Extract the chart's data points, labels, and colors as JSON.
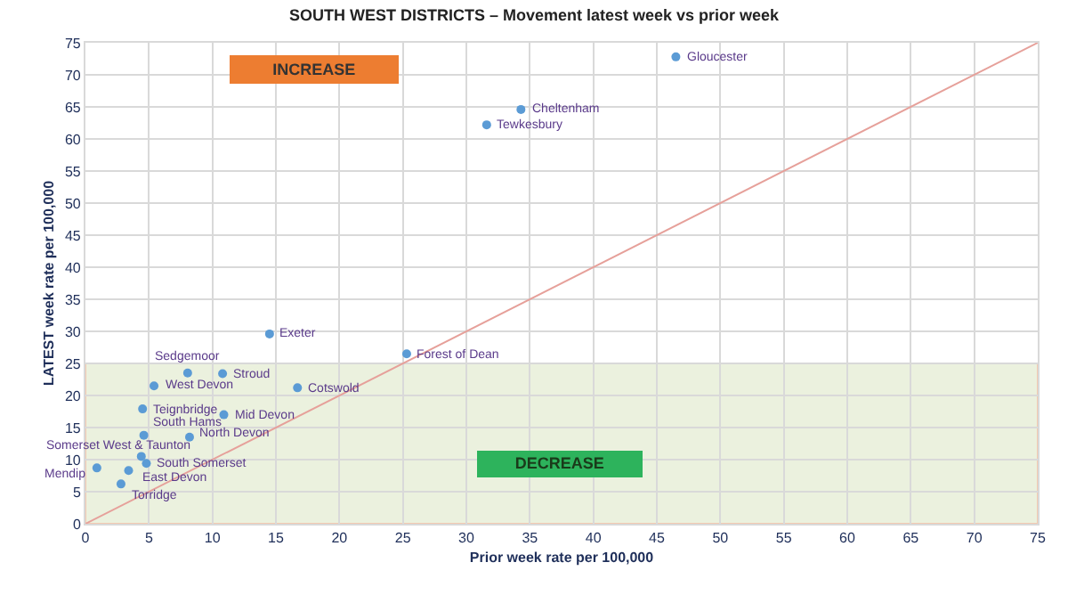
{
  "chart_data": {
    "type": "scatter",
    "title": "SOUTH WEST DISTRICTS – Movement latest week vs prior week",
    "xlabel": "Prior week rate per 100,000",
    "ylabel": "LATEST week rate per 100,000",
    "xlim": [
      0,
      75
    ],
    "ylim": [
      0,
      75
    ],
    "xticks": [
      0,
      5,
      10,
      15,
      20,
      25,
      30,
      35,
      40,
      45,
      50,
      55,
      60,
      65,
      70,
      75
    ],
    "yticks": [
      0,
      5,
      10,
      15,
      20,
      25,
      30,
      35,
      40,
      45,
      50,
      55,
      60,
      65,
      70,
      75
    ],
    "grid": true,
    "marker": "circle",
    "bands": [
      {
        "axis": "y",
        "from": 0,
        "to": 25,
        "color": "#ebf1de"
      }
    ],
    "annotations": [
      "INCREASE",
      "DECREASE"
    ],
    "series": [
      {
        "color": "#5b9bd5",
        "x": [
          46.5,
          34.3,
          31.6,
          14.5,
          25.3,
          8.05,
          10.8,
          5.4,
          16.7,
          4.5,
          10.9,
          4.6,
          8.2,
          4.4,
          4.8,
          0.9,
          3.4,
          2.8
        ],
        "values": [
          72.8,
          64.6,
          62.2,
          29.6,
          26.5,
          23.5,
          23.4,
          21.5,
          21.2,
          17.9,
          17.0,
          13.8,
          13.5,
          10.5,
          9.4,
          8.7,
          8.3,
          6.2
        ],
        "value_labels": [
          "Gloucester",
          "Cheltenham",
          "Tewkesbury",
          "Exeter",
          "Forest of Dean",
          "Sedgemoor",
          "Stroud",
          "West Devon",
          "Cotswold",
          "Teignbridge",
          "Mid Devon",
          "South Hams",
          "North Devon",
          "Somerset West & Taunton",
          "South Somerset",
          "Mendip",
          "East Devon",
          "Torridge"
        ]
      },
      {
        "type": "line",
        "marker": "none",
        "color": "#e6a09a",
        "x": [
          0,
          75
        ],
        "values": [
          0,
          75
        ]
      }
    ]
  }
}
